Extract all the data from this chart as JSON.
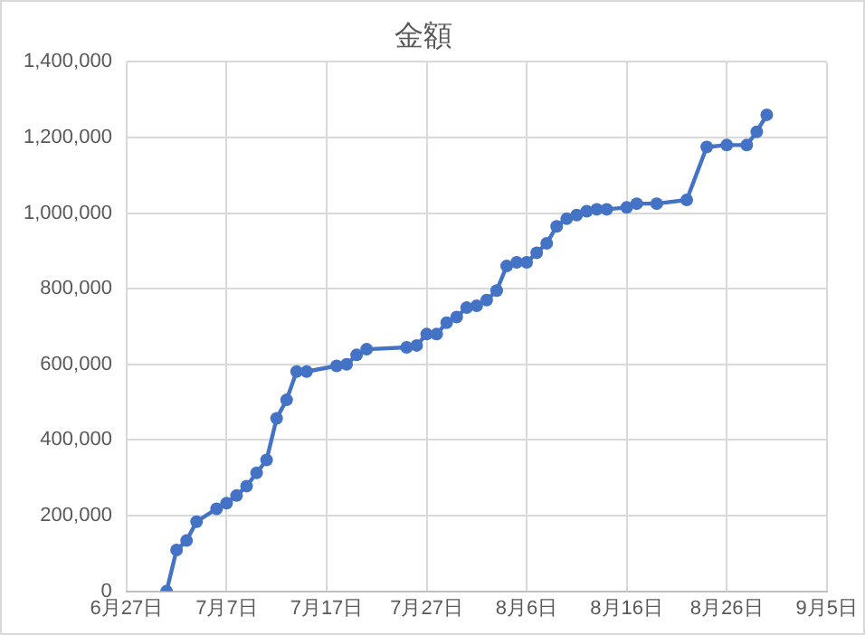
{
  "chart_data": {
    "type": "line",
    "title": "金額",
    "x": [
      "--07-01",
      "--07-02",
      "--07-03",
      "--07-04",
      "--07-06",
      "--07-07",
      "--07-08",
      "--07-09",
      "--07-10",
      "--07-11",
      "--07-12",
      "--07-13",
      "--07-14",
      "--07-15",
      "--07-18",
      "--07-19",
      "--07-20",
      "--07-21",
      "--07-25",
      "--07-26",
      "--07-27",
      "--07-28",
      "--07-29",
      "--07-30",
      "--07-31",
      "--08-01",
      "--08-02",
      "--08-03",
      "--08-04",
      "--08-05",
      "--08-06",
      "--08-07",
      "--08-08",
      "--08-09",
      "--08-10",
      "--08-11",
      "--08-12",
      "--08-13",
      "--08-14",
      "--08-16",
      "--08-17",
      "--08-19",
      "--08-22",
      "--08-24",
      "--08-26",
      "--08-28",
      "--08-29",
      "--08-30"
    ],
    "series": [
      {
        "color": "#4472c4",
        "values": [
          0,
          109000,
          134000,
          184000,
          218000,
          233000,
          253000,
          278000,
          313000,
          347000,
          457000,
          506000,
          581000,
          581000,
          596000,
          600000,
          625000,
          640000,
          645000,
          650000,
          680000,
          680000,
          710000,
          725000,
          750000,
          755000,
          770000,
          795000,
          860000,
          870000,
          870000,
          895000,
          920000,
          965000,
          985000,
          995000,
          1005000,
          1010000,
          1010000,
          1015000,
          1025000,
          1025000,
          1035000,
          1175000,
          1180000,
          1180000,
          1215000,
          1260000
        ]
      }
    ],
    "xlim": [
      "--06-27",
      "--09-05"
    ],
    "xticks": [
      {
        "value": "--06-27",
        "label": "6月27日"
      },
      {
        "value": "--07-07",
        "label": "7月7日"
      },
      {
        "value": "--07-17",
        "label": "7月17日"
      },
      {
        "value": "--07-27",
        "label": "7月27日"
      },
      {
        "value": "--08-06",
        "label": "8月6日"
      },
      {
        "value": "--08-16",
        "label": "8月16日"
      },
      {
        "value": "--08-26",
        "label": "8月26日"
      },
      {
        "value": "--09-05",
        "label": "9月5日"
      }
    ],
    "ylim": [
      0,
      1400000
    ],
    "yticks": [
      {
        "value": 0,
        "label": "0"
      },
      {
        "value": 200000,
        "label": "200,000"
      },
      {
        "value": 400000,
        "label": "400,000"
      },
      {
        "value": 600000,
        "label": "600,000"
      },
      {
        "value": 800000,
        "label": "800,000"
      },
      {
        "value": 1000000,
        "label": "1,000,000"
      },
      {
        "value": 1200000,
        "label": "1,200,000"
      },
      {
        "value": 1400000,
        "label": "1,400,000"
      }
    ],
    "grid": true,
    "legend": false,
    "marker": "circle",
    "line_style": "solid"
  }
}
